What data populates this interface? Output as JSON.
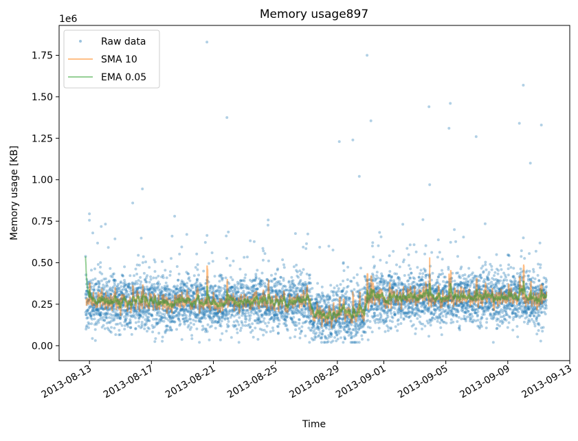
{
  "chart_data": {
    "type": "scatter",
    "title": "Memory usage897",
    "xlabel": "Time",
    "ylabel": "Memory usage [KB]",
    "y_offset_label": "1e6",
    "xlim": [
      "2013-08-11T01:00",
      "2013-09-13T00:00"
    ],
    "ylim": [
      -90000,
      1930000
    ],
    "x_ticks": [
      "2013-08-13",
      "2013-08-17",
      "2013-08-21",
      "2013-08-25",
      "2013-08-29",
      "2013-09-01",
      "2013-09-05",
      "2013-09-09",
      "2013-09-13"
    ],
    "y_ticks": [
      0,
      250000,
      500000,
      750000,
      1000000,
      1250000,
      1500000,
      1750000
    ],
    "y_tick_labels": [
      "0.00",
      "0.25",
      "0.50",
      "0.75",
      "1.00",
      "1.25",
      "1.50",
      "1.75"
    ],
    "legend_position": "top-left",
    "data_range": {
      "start": "2013-08-12T18:00",
      "end": "2013-09-11T12:00"
    },
    "regimes": [
      {
        "start": "2013-08-12T18:00",
        "end": "2013-08-27T06:00",
        "level": 260000
      },
      {
        "start": "2013-08-27T06:00",
        "end": "2013-08-30T18:00",
        "level": 190000
      },
      {
        "start": "2013-08-30T18:00",
        "end": "2013-09-11T12:00",
        "level": 285000
      }
    ],
    "typical_spread": 80000,
    "notable_outliers": [
      {
        "x": "2013-08-20T14:00",
        "y": 1830000
      },
      {
        "x": "2013-08-30T22:00",
        "y": 1750000
      },
      {
        "x": "2013-09-10T00:00",
        "y": 1570000
      },
      {
        "x": "2013-09-05T07:00",
        "y": 1460000
      },
      {
        "x": "2013-09-03T22:00",
        "y": 1440000
      },
      {
        "x": "2013-09-11T04:00",
        "y": 1330000
      },
      {
        "x": "2013-09-09T18:00",
        "y": 1340000
      },
      {
        "x": "2013-08-21T21:00",
        "y": 1375000
      },
      {
        "x": "2013-08-31T04:00",
        "y": 1355000
      },
      {
        "x": "2013-09-05T05:00",
        "y": 1310000
      },
      {
        "x": "2013-09-06T23:00",
        "y": 1260000
      },
      {
        "x": "2013-08-30T00:00",
        "y": 1240000
      },
      {
        "x": "2013-08-29T03:00",
        "y": 1230000
      },
      {
        "x": "2013-09-10T11:00",
        "y": 1100000
      },
      {
        "x": "2013-08-30T10:00",
        "y": 1020000
      },
      {
        "x": "2013-09-03T23:00",
        "y": 970000
      },
      {
        "x": "2013-08-16T10:00",
        "y": 945000
      },
      {
        "x": "2013-08-18T12:00",
        "y": 780000
      },
      {
        "x": "2013-08-13T00:00",
        "y": 795000
      },
      {
        "x": "2013-08-15T19:00",
        "y": 860000
      }
    ],
    "series": [
      {
        "name": "Raw data",
        "kind": "points",
        "color": "#1f77b4",
        "opacity": 0.35
      },
      {
        "name": "SMA 10",
        "kind": "line",
        "window": 10,
        "color": "#ff7f0e",
        "opacity": 0.5
      },
      {
        "name": "EMA 0.05",
        "kind": "line",
        "alpha": 0.05,
        "color": "#2ca02c",
        "opacity": 0.5
      }
    ]
  }
}
